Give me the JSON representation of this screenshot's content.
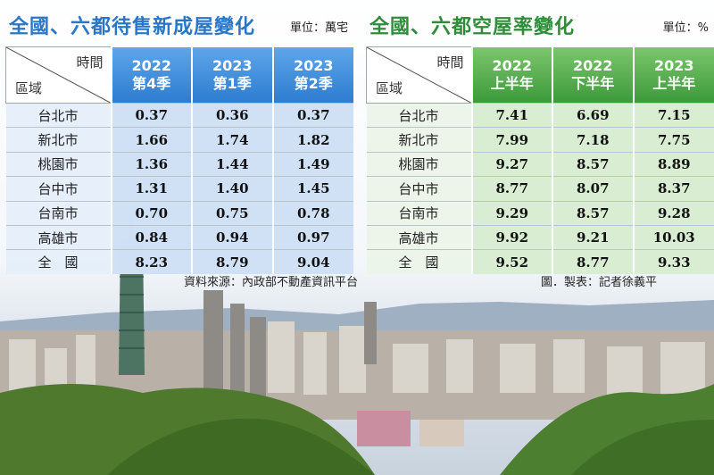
{
  "left_table": {
    "title": "全國、六都待售新成屋變化",
    "unit": "單位：萬宅",
    "corner_top": "時間",
    "corner_bottom": "區域",
    "columns": [
      {
        "line1": "2022",
        "line2": "第4季"
      },
      {
        "line1": "2023",
        "line2": "第1季"
      },
      {
        "line1": "2023",
        "line2": "第2季"
      }
    ],
    "rows": [
      {
        "region": "台北市",
        "values": [
          "0.37",
          "0.36",
          "0.37"
        ]
      },
      {
        "region": "新北市",
        "values": [
          "1.66",
          "1.74",
          "1.82"
        ]
      },
      {
        "region": "桃園市",
        "values": [
          "1.36",
          "1.44",
          "1.49"
        ]
      },
      {
        "region": "台中市",
        "values": [
          "1.31",
          "1.40",
          "1.45"
        ]
      },
      {
        "region": "台南市",
        "values": [
          "0.70",
          "0.75",
          "0.78"
        ]
      },
      {
        "region": "高雄市",
        "values": [
          "0.84",
          "0.94",
          "0.97"
        ]
      },
      {
        "region": "全　國",
        "values": [
          "8.23",
          "8.79",
          "9.04"
        ]
      }
    ],
    "source": "資料來源：內政部不動產資訊平台"
  },
  "right_table": {
    "title": "全國、六都空屋率變化",
    "unit": "單位：%",
    "corner_top": "時間",
    "corner_bottom": "區域",
    "columns": [
      {
        "line1": "2022",
        "line2": "上半年"
      },
      {
        "line1": "2022",
        "line2": "下半年"
      },
      {
        "line1": "2023",
        "line2": "上半年"
      }
    ],
    "rows": [
      {
        "region": "台北市",
        "values": [
          "7.41",
          "6.69",
          "7.15"
        ]
      },
      {
        "region": "新北市",
        "values": [
          "7.99",
          "7.18",
          "7.75"
        ]
      },
      {
        "region": "桃園市",
        "values": [
          "9.27",
          "8.57",
          "8.89"
        ]
      },
      {
        "region": "台中市",
        "values": [
          "8.77",
          "8.07",
          "8.37"
        ]
      },
      {
        "region": "台南市",
        "values": [
          "9.29",
          "8.57",
          "9.28"
        ]
      },
      {
        "region": "高雄市",
        "values": [
          "9.92",
          "9.21",
          "10.03"
        ]
      },
      {
        "region": "全　國",
        "values": [
          "9.52",
          "8.77",
          "9.33"
        ]
      }
    ],
    "credit": "圖．製表：記者徐義平"
  },
  "colors": {
    "left_accent": "#2a76c6",
    "right_accent": "#2f8d3a"
  }
}
